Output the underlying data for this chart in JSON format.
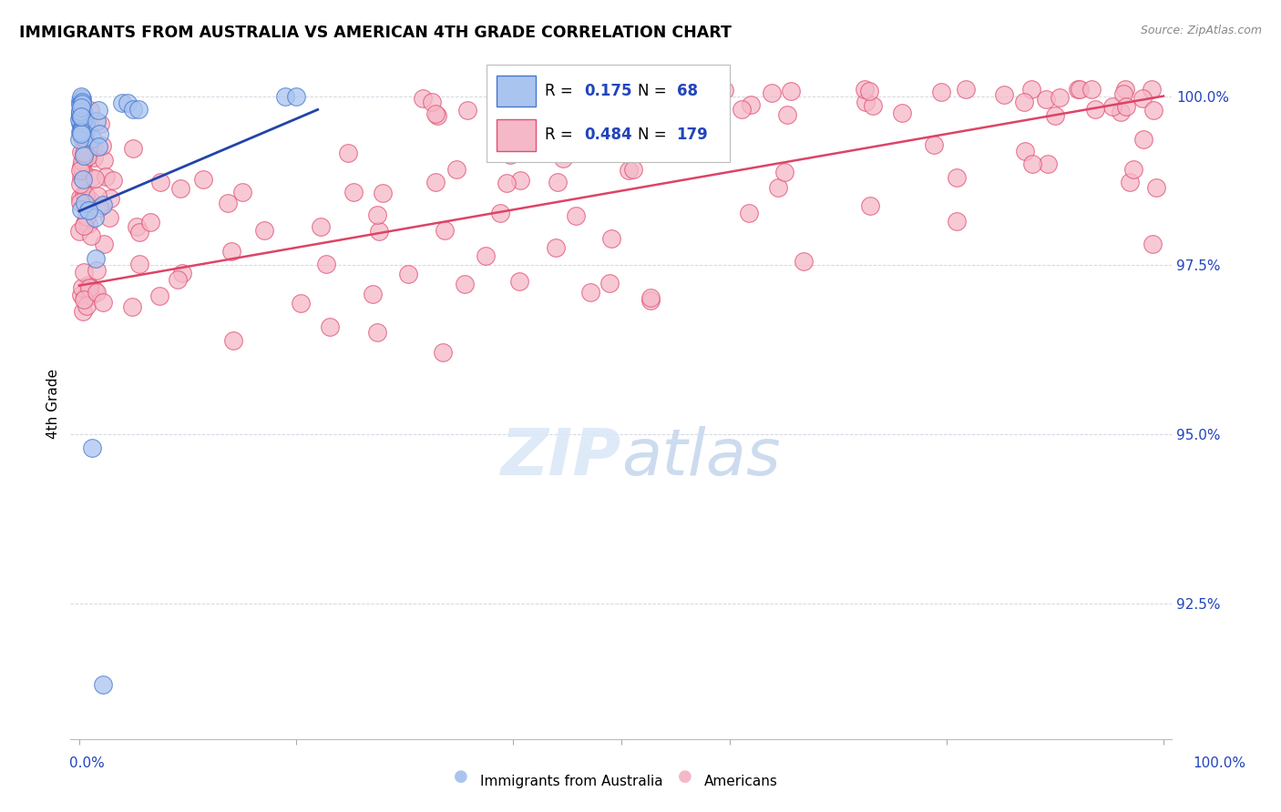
{
  "title": "IMMIGRANTS FROM AUSTRALIA VS AMERICAN 4TH GRADE CORRELATION CHART",
  "source": "Source: ZipAtlas.com",
  "ylabel": "4th Grade",
  "blue_R": 0.175,
  "blue_N": 68,
  "pink_R": 0.484,
  "pink_N": 179,
  "blue_color": "#aac4f0",
  "pink_color": "#f5b8c8",
  "blue_edge_color": "#4477cc",
  "pink_edge_color": "#e05070",
  "blue_line_color": "#2244aa",
  "pink_line_color": "#dd4466",
  "legend_label_blue": "Immigrants from Australia",
  "legend_label_pink": "Americans",
  "ylim_low": 0.905,
  "ylim_high": 1.004,
  "y_ticks": [
    0.925,
    0.95,
    0.975,
    1.0
  ],
  "y_tick_labels": [
    "92.5%",
    "95.0%",
    "97.5%",
    "100.0%"
  ]
}
